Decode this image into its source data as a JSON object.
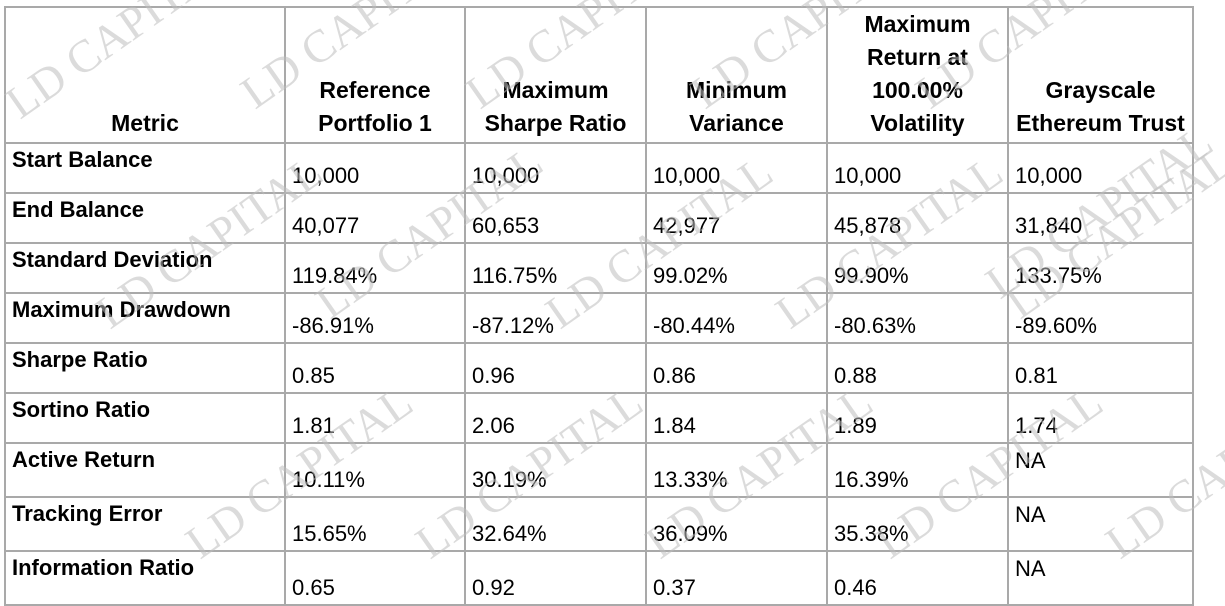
{
  "watermark": "LD CAPITAL",
  "headers": [
    "Metric",
    "Reference Portfolio 1",
    "Maximum Sharpe Ratio",
    "Minimum Variance",
    "Maximum Return at 100.00% Volatility",
    "Grayscale Ethereum Trust"
  ],
  "rows": [
    {
      "metric": "Start Balance",
      "values": [
        "10,000",
        "10,000",
        "10,000",
        "10,000",
        "10,000"
      ]
    },
    {
      "metric": "End Balance",
      "values": [
        "40,077",
        "60,653",
        "42,977",
        "45,878",
        "31,840"
      ]
    },
    {
      "metric": "Standard Deviation",
      "values": [
        "119.84%",
        "116.75%",
        "99.02%",
        "99.90%",
        "133.75%"
      ]
    },
    {
      "metric": "Maximum Drawdown",
      "values": [
        "-86.91%",
        "-87.12%",
        "-80.44%",
        "-80.63%",
        "-89.60%"
      ]
    },
    {
      "metric": "Sharpe Ratio",
      "values": [
        "0.85",
        "0.96",
        "0.86",
        "0.88",
        "0.81"
      ]
    },
    {
      "metric": "Sortino Ratio",
      "values": [
        "1.81",
        "2.06",
        "1.84",
        "1.89",
        "1.74"
      ]
    },
    {
      "metric": "Active Return",
      "values": [
        "10.11%",
        "30.19%",
        "13.33%",
        "16.39%",
        "NA"
      ]
    },
    {
      "metric": "Tracking Error",
      "values": [
        "15.65%",
        "32.64%",
        "36.09%",
        "35.38%",
        "NA"
      ]
    },
    {
      "metric": "Information Ratio",
      "values": [
        "0.65",
        "0.92",
        "0.37",
        "0.46",
        "NA"
      ]
    }
  ]
}
